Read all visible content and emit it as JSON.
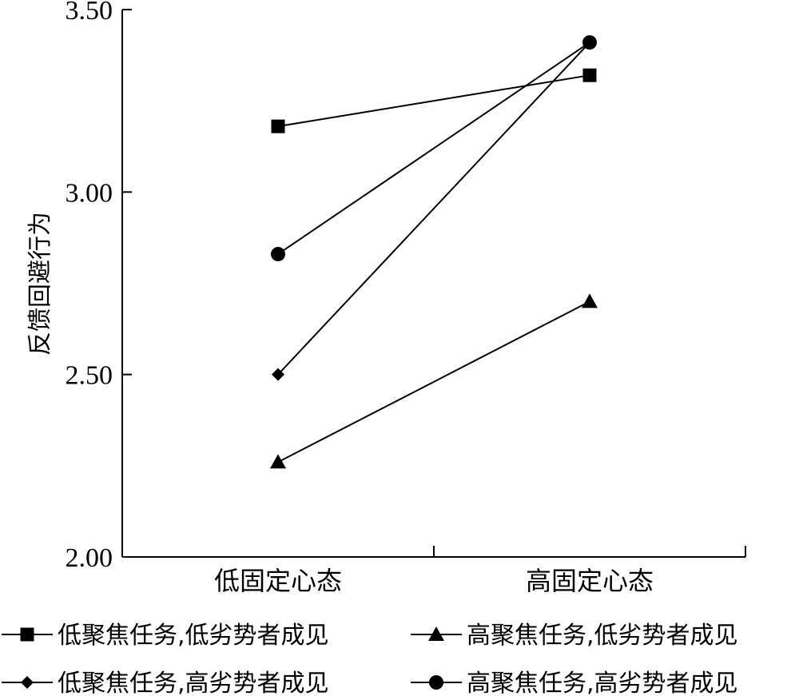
{
  "chart_data": {
    "type": "line",
    "title": "",
    "xlabel": "",
    "ylabel": "反馈回避行为",
    "categories": [
      "低固定心态",
      "高固定心态"
    ],
    "ylim": [
      2.0,
      3.5
    ],
    "yticks": [
      "2.00",
      "2.50",
      "3.00",
      "3.50"
    ],
    "grid": false,
    "legend_position": "bottom",
    "series": [
      {
        "name": "低聚焦任务,低劣势者成见",
        "marker": "square",
        "values": [
          3.18,
          3.32
        ]
      },
      {
        "name": "高聚焦任务,低劣势者成见",
        "marker": "triangle",
        "values": [
          2.26,
          2.7
        ]
      },
      {
        "name": "低聚焦任务,高劣势者成见",
        "marker": "diamond",
        "values": [
          2.5,
          3.41
        ]
      },
      {
        "name": "高聚焦任务,高劣势者成见",
        "marker": "circle",
        "values": [
          2.83,
          3.41
        ]
      }
    ]
  }
}
